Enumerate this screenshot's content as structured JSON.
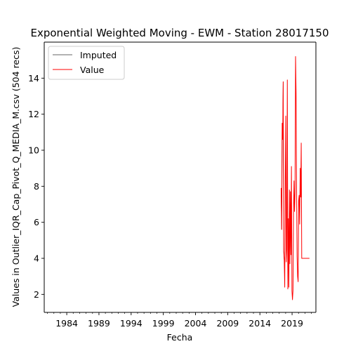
{
  "chart_data": {
    "type": "line",
    "title": "Exponential Weighted Moving - EWM - Station 28017150",
    "xlabel": "Fecha",
    "ylabel": "Values in Outlier_IQR_Cap_Pivot_Q_MEDIA_M.csv (504 recs)",
    "xlim": [
      1980.5,
      2022.7
    ],
    "ylim": [
      1.0,
      16.0
    ],
    "x_major_ticks": [
      1984,
      1989,
      1994,
      1999,
      2004,
      2009,
      2014,
      2019
    ],
    "x_major_tick_labels": [
      "1984",
      "1989",
      "1994",
      "1999",
      "2004",
      "2009",
      "2014",
      "2019"
    ],
    "x_minor_tick_step": 1,
    "y_ticks": [
      2,
      4,
      6,
      8,
      10,
      12,
      14
    ],
    "y_tick_labels": [
      "2",
      "4",
      "6",
      "8",
      "10",
      "12",
      "14"
    ],
    "grid": false,
    "legend_position": "top-left",
    "series": [
      {
        "name": "Imputed",
        "color": "#333333",
        "linewidth": 0.8,
        "x": [
          2017.3,
          2017.38,
          2017.46,
          2017.54,
          2017.62,
          2017.7,
          2017.78
        ],
        "y": [
          7.9,
          5.6,
          11.5,
          10.6,
          13.8,
          4.4,
          3.9
        ]
      },
      {
        "name": "Value",
        "color": "#ff0000",
        "linewidth": 1.0,
        "x": [
          2017.3,
          2017.38,
          2017.46,
          2017.54,
          2017.62,
          2017.7,
          2017.78,
          2017.86,
          2017.94,
          2018.02,
          2018.1,
          2018.18,
          2018.26,
          2018.34,
          2018.42,
          2018.5,
          2018.58,
          2018.66,
          2018.74,
          2018.82,
          2018.9,
          2018.98,
          2019.06,
          2019.14,
          2019.22,
          2019.3,
          2019.38,
          2019.46,
          2019.54,
          2019.62,
          2019.7,
          2019.78,
          2019.86,
          2019.94,
          2020.02,
          2020.1,
          2020.18,
          2020.26,
          2020.34,
          2020.42,
          2020.5,
          2020.58,
          2020.66,
          2020.74,
          2020.82,
          2020.9,
          2020.98,
          2021.06,
          2021.14,
          2021.22,
          2021.3,
          2021.38,
          2021.46,
          2021.54,
          2021.62,
          2021.7
        ],
        "y": [
          7.9,
          5.6,
          11.5,
          10.6,
          13.8,
          4.4,
          3.9,
          2.4,
          8.3,
          11.9,
          3.8,
          4.5,
          13.9,
          2.3,
          6.2,
          2.4,
          7.8,
          3.7,
          7.7,
          4.2,
          9.1,
          2.2,
          1.7,
          2.2,
          6.4,
          8.3,
          6.6,
          7.6,
          15.2,
          13.2,
          7.8,
          4.1,
          3.0,
          2.7,
          7.2,
          7.5,
          5.9,
          9.0,
          7.4,
          10.4,
          4.0,
          4.0,
          4.0,
          4.0,
          4.0,
          4.0,
          4.0,
          4.0,
          4.0,
          4.0,
          4.0,
          4.0,
          4.0,
          4.0,
          4.0,
          4.0
        ]
      }
    ]
  }
}
